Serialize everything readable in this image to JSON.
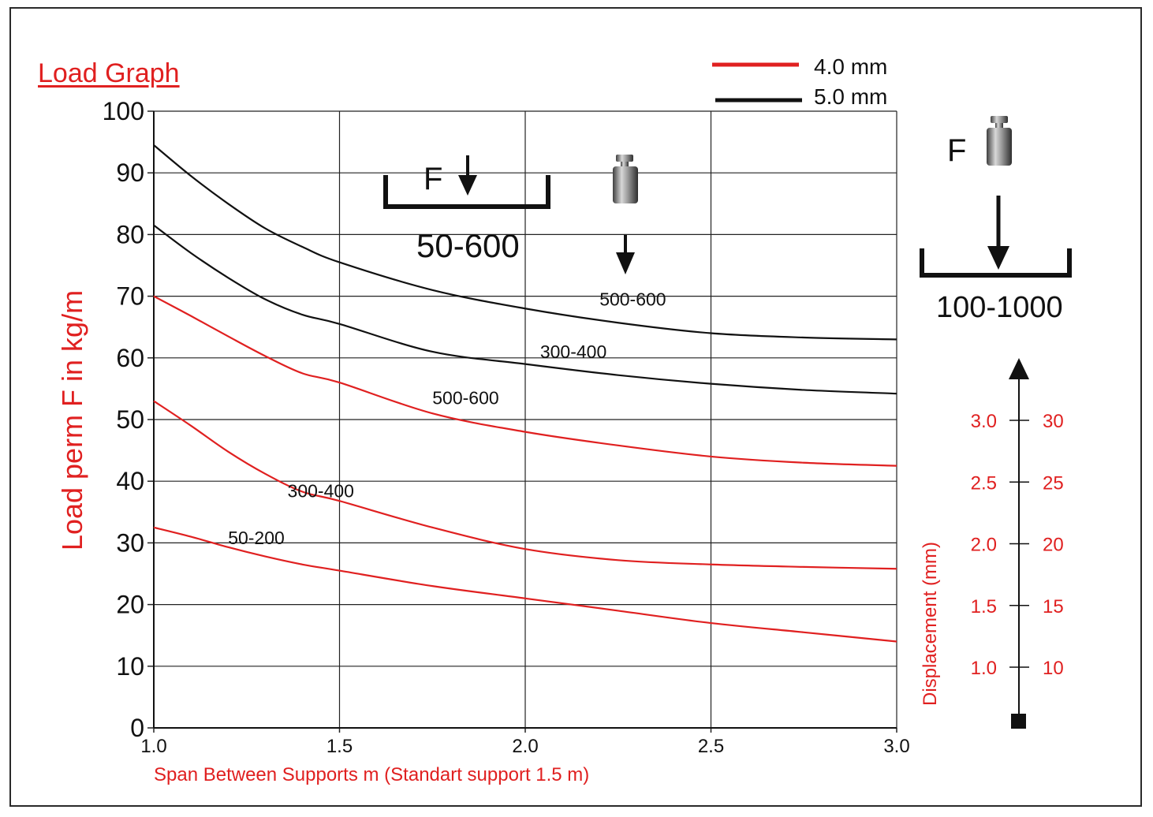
{
  "chart_data": {
    "type": "line",
    "title": "Load Graph",
    "xlabel": "Span Between Supports m (Standart support 1.5 m)",
    "ylabel": "Load perm F in kg/m",
    "xlim": [
      1.0,
      3.0
    ],
    "ylim": [
      0,
      100
    ],
    "x_ticks": [
      "1.0",
      "1.5",
      "2.0",
      "2.5",
      "3.0"
    ],
    "y_ticks": [
      "0",
      "10",
      "20",
      "30",
      "40",
      "50",
      "60",
      "70",
      "80",
      "90",
      "100"
    ],
    "grid": true,
    "legend": [
      {
        "label": "4.0 mm",
        "color": "#e02020"
      },
      {
        "label": "5.0 mm",
        "color": "#111111"
      }
    ],
    "series": [
      {
        "name": "500-600",
        "group": "5.0 mm",
        "color": "#111111",
        "label_at": [
          2.2,
          68.5
        ],
        "x": [
          1.0,
          1.1,
          1.2,
          1.3,
          1.4,
          1.5,
          1.75,
          2.0,
          2.25,
          2.5,
          2.75,
          3.0
        ],
        "y": [
          94.5,
          89.5,
          85,
          81,
          78,
          75.5,
          71,
          68,
          65.7,
          64,
          63.3,
          63
        ]
      },
      {
        "name": "300-400",
        "group": "5.0 mm",
        "color": "#111111",
        "label_at": [
          2.04,
          60
        ],
        "x": [
          1.0,
          1.1,
          1.2,
          1.3,
          1.4,
          1.5,
          1.75,
          2.0,
          2.25,
          2.5,
          2.75,
          3.0
        ],
        "y": [
          81.5,
          77,
          73,
          69.5,
          67,
          65.5,
          61,
          59,
          57.2,
          55.8,
          54.8,
          54.2
        ]
      },
      {
        "name": "500-600",
        "group": "4.0 mm",
        "color": "#e02020",
        "label_at": [
          1.75,
          52.5
        ],
        "x": [
          1.0,
          1.1,
          1.2,
          1.3,
          1.4,
          1.5,
          1.75,
          2.0,
          2.25,
          2.5,
          2.75,
          3.0
        ],
        "y": [
          70,
          66.8,
          63.5,
          60.3,
          57.5,
          56,
          51,
          48,
          45.8,
          44,
          43,
          42.5
        ]
      },
      {
        "name": "300-400",
        "group": "4.0 mm",
        "color": "#e02020",
        "label_at": [
          1.36,
          37.4
        ],
        "x": [
          1.0,
          1.1,
          1.2,
          1.3,
          1.4,
          1.5,
          1.75,
          2.0,
          2.25,
          2.5,
          2.75,
          3.0
        ],
        "y": [
          53,
          49,
          44.8,
          41.2,
          38.3,
          36.8,
          32.5,
          29,
          27.2,
          26.5,
          26.1,
          25.8
        ]
      },
      {
        "name": "50-200",
        "group": "4.0 mm",
        "color": "#e02020",
        "label_at": [
          1.2,
          29.8
        ],
        "x": [
          1.0,
          1.1,
          1.2,
          1.3,
          1.4,
          1.5,
          1.75,
          2.0,
          2.25,
          2.5,
          2.75,
          3.0
        ],
        "y": [
          32.5,
          31,
          29.3,
          27.8,
          26.5,
          25.5,
          23,
          21,
          19,
          17,
          15.5,
          14
        ]
      }
    ],
    "diagrams": [
      {
        "force_label": "F",
        "range_label": "50-600"
      },
      {
        "force_label": "F",
        "range_label": "100-1000"
      }
    ],
    "displacement_axis": {
      "title": "Displacement (mm)",
      "left_ticks": [
        "1.0",
        "1.5",
        "2.0",
        "2.5",
        "3.0"
      ],
      "right_ticks": [
        "10",
        "15",
        "20",
        "25",
        "30"
      ],
      "color": "#e02020"
    }
  }
}
